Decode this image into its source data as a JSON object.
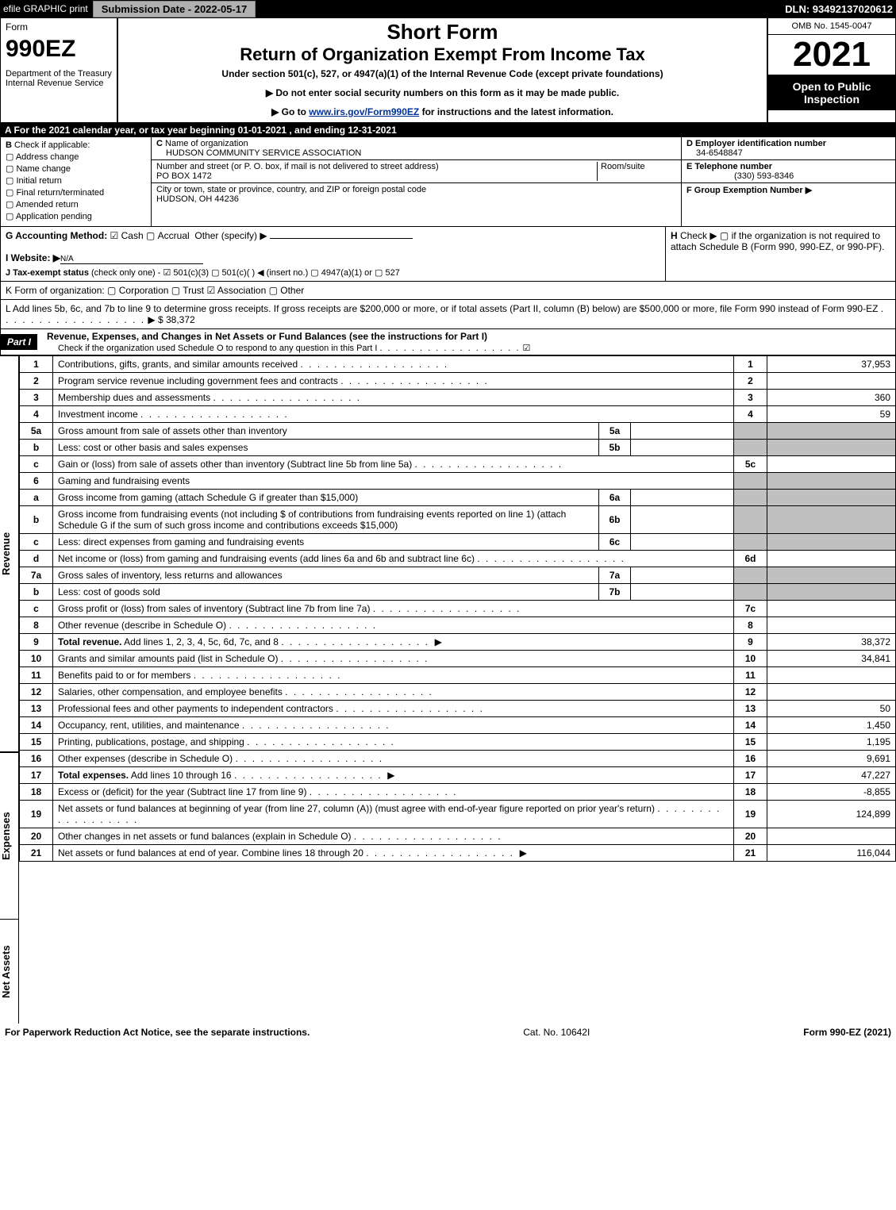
{
  "topbar": {
    "efile": "efile GRAPHIC print",
    "submission": "Submission Date - 2022-05-17",
    "dln": "DLN: 93492137020612"
  },
  "header": {
    "form_label": "Form",
    "form_no": "990EZ",
    "dept": "Department of the Treasury\nInternal Revenue Service",
    "short_form": "Short Form",
    "title": "Return of Organization Exempt From Income Tax",
    "subtitle": "Under section 501(c), 527, or 4947(a)(1) of the Internal Revenue Code (except private foundations)",
    "instr1": "▶ Do not enter social security numbers on this form as it may be made public.",
    "instr2_pre": "▶ Go to ",
    "instr2_link": "www.irs.gov/Form990EZ",
    "instr2_post": " for instructions and the latest information.",
    "omb": "OMB No. 1545-0047",
    "year": "2021",
    "open": "Open to Public Inspection"
  },
  "section_a": "A  For the 2021 calendar year, or tax year beginning 01-01-2021 , and ending 12-31-2021",
  "section_b": {
    "label": "B",
    "check_if": "Check if applicable:",
    "options": [
      "Address change",
      "Name change",
      "Initial return",
      "Final return/terminated",
      "Amended return",
      "Application pending"
    ],
    "c_label": "C",
    "name_label": "Name of organization",
    "org_name": "HUDSON COMMUNITY SERVICE ASSOCIATION",
    "addr_label": "Number and street (or P. O. box, if mail is not delivered to street address)",
    "room_label": "Room/suite",
    "address": "PO BOX 1472",
    "city_label": "City or town, state or province, country, and ZIP or foreign postal code",
    "city": "HUDSON, OH  44236",
    "d_label": "D Employer identification number",
    "ein": "34-6548847",
    "e_label": "E Telephone number",
    "phone": "(330) 593-8346",
    "f_label": "F Group Exemption Number   ▶",
    "f_val": ""
  },
  "section_g": {
    "g_label": "G Accounting Method:",
    "cash": "Cash",
    "accrual": "Accrual",
    "other": "Other (specify) ▶",
    "h_label": "H",
    "h_text": "Check ▶ ▢ if the organization is not required to attach Schedule B (Form 990, 990-EZ, or 990-PF).",
    "i_label": "I Website: ▶",
    "website": "N/A",
    "j_label": "J Tax-exempt status",
    "j_text": "(check only one) - ☑ 501(c)(3) ▢ 501(c)(  ) ◀ (insert no.) ▢ 4947(a)(1) or ▢ 527"
  },
  "section_k": "K Form of organization:  ▢ Corporation  ▢ Trust  ☑ Association  ▢ Other",
  "section_l": {
    "text": "L Add lines 5b, 6c, and 7b to line 9 to determine gross receipts. If gross receipts are $200,000 or more, or if total assets (Part II, column (B) below) are $500,000 or more, file Form 990 instead of Form 990-EZ",
    "arrow": "▶ $",
    "value": "38,372"
  },
  "part1": {
    "tab": "Part I",
    "title": "Revenue, Expenses, and Changes in Net Assets or Fund Balances (see the instructions for Part I)",
    "check_text": "Check if the organization used Schedule O to respond to any question in this Part I",
    "check_val": "☑",
    "side_rev": "Revenue",
    "side_exp": "Expenses",
    "side_net": "Net Assets",
    "rows": [
      {
        "n": "1",
        "desc": "Contributions, gifts, grants, and similar amounts received",
        "vn": "1",
        "val": "37,953"
      },
      {
        "n": "2",
        "desc": "Program service revenue including government fees and contracts",
        "vn": "2",
        "val": ""
      },
      {
        "n": "3",
        "desc": "Membership dues and assessments",
        "vn": "3",
        "val": "360"
      },
      {
        "n": "4",
        "desc": "Investment income",
        "vn": "4",
        "val": "59"
      },
      {
        "n": "5a",
        "desc": "Gross amount from sale of assets other than inventory",
        "mid": "5a",
        "midval": ""
      },
      {
        "n": "b",
        "desc": "Less: cost or other basis and sales expenses",
        "mid": "5b",
        "midval": ""
      },
      {
        "n": "c",
        "desc": "Gain or (loss) from sale of assets other than inventory (Subtract line 5b from line 5a)",
        "vn": "5c",
        "val": ""
      },
      {
        "n": "6",
        "desc": "Gaming and fundraising events"
      },
      {
        "n": "a",
        "desc": "Gross income from gaming (attach Schedule G if greater than $15,000)",
        "mid": "6a",
        "midval": ""
      },
      {
        "n": "b",
        "desc": "Gross income from fundraising events (not including $               of contributions from fundraising events reported on line 1) (attach Schedule G if the sum of such gross income and contributions exceeds $15,000)",
        "mid": "6b",
        "midval": ""
      },
      {
        "n": "c",
        "desc": "Less: direct expenses from gaming and fundraising events",
        "mid": "6c",
        "midval": ""
      },
      {
        "n": "d",
        "desc": "Net income or (loss) from gaming and fundraising events (add lines 6a and 6b and subtract line 6c)",
        "vn": "6d",
        "val": ""
      },
      {
        "n": "7a",
        "desc": "Gross sales of inventory, less returns and allowances",
        "mid": "7a",
        "midval": ""
      },
      {
        "n": "b",
        "desc": "Less: cost of goods sold",
        "mid": "7b",
        "midval": ""
      },
      {
        "n": "c",
        "desc": "Gross profit or (loss) from sales of inventory (Subtract line 7b from line 7a)",
        "vn": "7c",
        "val": ""
      },
      {
        "n": "8",
        "desc": "Other revenue (describe in Schedule O)",
        "vn": "8",
        "val": ""
      },
      {
        "n": "9",
        "desc": "Total revenue. Add lines 1, 2, 3, 4, 5c, 6d, 7c, and 8",
        "vn": "9",
        "val": "38,372",
        "bold": true,
        "arrow": true
      }
    ],
    "exp_rows": [
      {
        "n": "10",
        "desc": "Grants and similar amounts paid (list in Schedule O)",
        "vn": "10",
        "val": "34,841"
      },
      {
        "n": "11",
        "desc": "Benefits paid to or for members",
        "vn": "11",
        "val": ""
      },
      {
        "n": "12",
        "desc": "Salaries, other compensation, and employee benefits",
        "vn": "12",
        "val": ""
      },
      {
        "n": "13",
        "desc": "Professional fees and other payments to independent contractors",
        "vn": "13",
        "val": "50"
      },
      {
        "n": "14",
        "desc": "Occupancy, rent, utilities, and maintenance",
        "vn": "14",
        "val": "1,450"
      },
      {
        "n": "15",
        "desc": "Printing, publications, postage, and shipping",
        "vn": "15",
        "val": "1,195"
      },
      {
        "n": "16",
        "desc": "Other expenses (describe in Schedule O)",
        "vn": "16",
        "val": "9,691"
      },
      {
        "n": "17",
        "desc": "Total expenses. Add lines 10 through 16",
        "vn": "17",
        "val": "47,227",
        "bold": true,
        "arrow": true
      }
    ],
    "net_rows": [
      {
        "n": "18",
        "desc": "Excess or (deficit) for the year (Subtract line 17 from line 9)",
        "vn": "18",
        "val": "-8,855"
      },
      {
        "n": "19",
        "desc": "Net assets or fund balances at beginning of year (from line 27, column (A)) (must agree with end-of-year figure reported on prior year's return)",
        "vn": "19",
        "val": "124,899"
      },
      {
        "n": "20",
        "desc": "Other changes in net assets or fund balances (explain in Schedule O)",
        "vn": "20",
        "val": ""
      },
      {
        "n": "21",
        "desc": "Net assets or fund balances at end of year. Combine lines 18 through 20",
        "vn": "21",
        "val": "116,044",
        "arrow": true
      }
    ]
  },
  "footer": {
    "left": "For Paperwork Reduction Act Notice, see the separate instructions.",
    "mid": "Cat. No. 10642I",
    "right": "Form 990-EZ (2021)"
  }
}
